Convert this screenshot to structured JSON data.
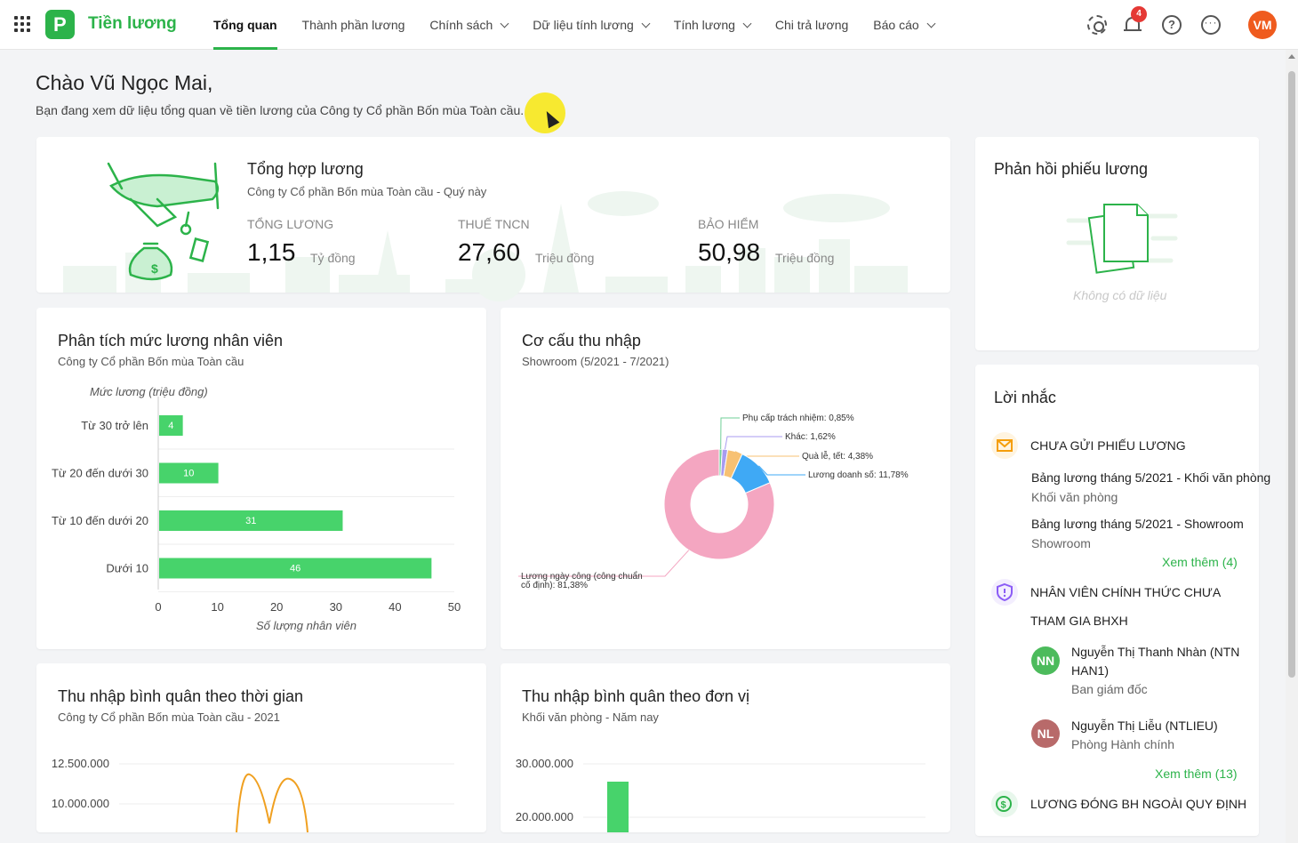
{
  "app": {
    "title": "Tiền lương",
    "logo_letter": "P"
  },
  "nav": [
    {
      "label": "Tổng quan",
      "active": true,
      "dropdown": false
    },
    {
      "label": "Thành phần lương",
      "active": false,
      "dropdown": false
    },
    {
      "label": "Chính sách",
      "active": false,
      "dropdown": true
    },
    {
      "label": "Dữ liệu tính lương",
      "active": false,
      "dropdown": true
    },
    {
      "label": "Tính lương",
      "active": false,
      "dropdown": true
    },
    {
      "label": "Chi trả lương",
      "active": false,
      "dropdown": false
    },
    {
      "label": "Báo cáo",
      "active": false,
      "dropdown": true
    }
  ],
  "topbar": {
    "notification_count": "4",
    "help_symbol": "?",
    "more_symbol": "···",
    "user_initials": "VM"
  },
  "greeting": {
    "title": "Chào Vũ Ngọc Mai,",
    "subtitle": "Bạn đang xem dữ liệu tổng quan về tiền lương của Công ty Cổ phần Bốn mùa Toàn cầu."
  },
  "summary": {
    "title": "Tổng hợp lương",
    "subtitle": "Công ty Cổ phần Bốn mùa Toàn cầu - Quý này",
    "stats": [
      {
        "label": "Tổng lương",
        "value": "1,15",
        "unit": "Tỷ đồng"
      },
      {
        "label": "Thuế TNCN",
        "value": "27,60",
        "unit": "Triệu đồng"
      },
      {
        "label": "Bảo hiểm",
        "value": "50,98",
        "unit": "Triệu đồng"
      }
    ]
  },
  "salary_analysis": {
    "title": "Phân tích mức lương nhân viên",
    "subtitle": "Công ty Cổ phần Bốn mùa Toàn cầu"
  },
  "income_structure": {
    "title": "Cơ cấu thu nhập",
    "subtitle": "Showroom (5/2021 - 7/2021)"
  },
  "avg_income_time": {
    "title": "Thu nhập bình quân theo thời gian",
    "subtitle": "Công ty Cổ phần Bốn mùa Toàn cầu - 2021"
  },
  "avg_income_unit": {
    "title": "Thu nhập bình quân theo đơn vị",
    "subtitle": "Khối văn phòng - Năm nay"
  },
  "feedback": {
    "title": "Phản hồi phiếu lương",
    "empty_text": "Không có dữ liệu"
  },
  "reminders": {
    "title": "Lời nhắc",
    "groups": [
      {
        "heading": "CHƯA GỬI PHIẾU LƯƠNG",
        "items": [
          {
            "title": "Bảng lương tháng 5/2021 - Khối văn phòng",
            "sub": "Khối văn phòng"
          },
          {
            "title": "Bảng lương tháng 5/2021 - Showroom",
            "sub": "Showroom"
          }
        ],
        "more": "Xem thêm (4)"
      },
      {
        "heading_line1": "NHÂN VIÊN CHÍNH THỨC CHƯA",
        "heading_line2": "THAM GIA BHXH",
        "people": [
          {
            "initials": "NN",
            "name_line1": "Nguyễn Thị Thanh Nhàn (NTN",
            "name_line2": "HAN1)",
            "dept": "Ban giám đốc",
            "color": "#4cbb5c"
          },
          {
            "initials": "NL",
            "name_line1": "Nguyễn Thị Liễu (NTLIEU)",
            "dept": "Phòng Hành chính",
            "color": "#b86a6a"
          }
        ],
        "more": "Xem thêm (13)"
      },
      {
        "heading": "LƯƠNG ĐÓNG BH NGOÀI QUY ĐỊNH"
      }
    ]
  },
  "chart_data": [
    {
      "type": "bar",
      "orientation": "horizontal",
      "title": "Phân tích mức lương nhân viên",
      "ylabel": "Mức lương (triệu đồng)",
      "xlabel": "Số lượng nhân viên",
      "categories": [
        "Từ 30 trở lên",
        "Từ 20 đến dưới 30",
        "Từ 10 đến dưới 20",
        "Dưới 10"
      ],
      "values": [
        4,
        10,
        31,
        46
      ],
      "xlim": [
        0,
        50
      ],
      "xticks": [
        "0",
        "10",
        "20",
        "30",
        "40",
        "50"
      ],
      "color": "#47d36b"
    },
    {
      "type": "pie",
      "donut": true,
      "title": "Cơ cấu thu nhập",
      "slices": [
        {
          "label": "Phụ cấp trách nhiệm: 0,85%",
          "value": 0.85,
          "color": "#6fcf97"
        },
        {
          "label": "Khác: 1,62%",
          "value": 1.62,
          "color": "#a99bf0"
        },
        {
          "label": "Quà lễ, tết: 4,38%",
          "value": 4.38,
          "color": "#f7c173"
        },
        {
          "label": "Lương doanh số: 11,78%",
          "value": 11.78,
          "color": "#3fa9f5"
        },
        {
          "label_line1": "Lương ngày công (công chuẩn",
          "label_line2": "cố định): 81,38%",
          "value": 81.38,
          "color": "#f4a6c1"
        }
      ]
    },
    {
      "type": "line",
      "title": "Thu nhập bình quân theo thời gian",
      "yticks": [
        "12.500.000",
        "10.000.000"
      ],
      "color": "#f0a020"
    },
    {
      "type": "bar",
      "title": "Thu nhập bình quân theo đơn vị",
      "yticks": [
        "30.000.000",
        "20.000.000"
      ],
      "color": "#47d36b"
    }
  ]
}
